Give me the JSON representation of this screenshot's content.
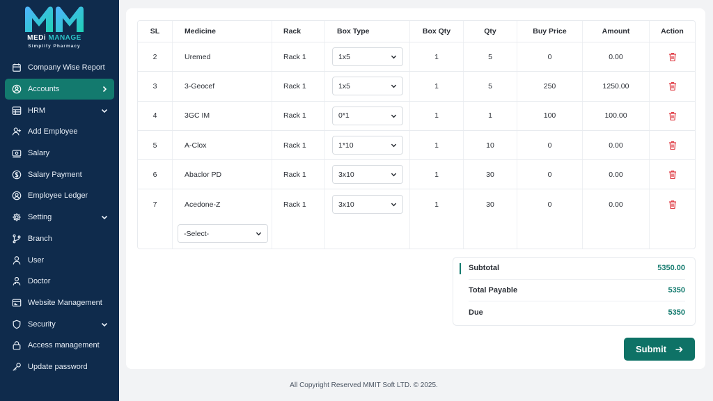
{
  "brand": {
    "name_part1": "MEDi ",
    "name_part2": "MANAGE",
    "tagline": "Simplify Pharmacy"
  },
  "sidebar": {
    "items": [
      {
        "label": "Company Wise Report",
        "icon": "report-icon"
      },
      {
        "label": "Accounts",
        "icon": "user-circle-icon",
        "active": true
      },
      {
        "label": "HRM",
        "icon": "grid-icon",
        "expandable": true
      },
      {
        "label": "Add Employee",
        "icon": "user-plus-icon"
      },
      {
        "label": "Salary",
        "icon": "money-icon"
      },
      {
        "label": "Salary Payment",
        "icon": "dollar-circle-icon"
      },
      {
        "label": "Employee Ledger",
        "icon": "user-circle-icon"
      },
      {
        "label": "Setting",
        "icon": "gear-icon",
        "expandable": true
      },
      {
        "label": "Branch",
        "icon": "branch-icon"
      },
      {
        "label": "User",
        "icon": "user-icon"
      },
      {
        "label": "Doctor",
        "icon": "doctor-icon"
      },
      {
        "label": "Website Management",
        "icon": "website-icon"
      },
      {
        "label": "Security",
        "icon": "shield-icon",
        "expandable": true
      },
      {
        "label": "Access management",
        "icon": "lock-icon"
      },
      {
        "label": "Update password",
        "icon": "key-icon"
      }
    ]
  },
  "table": {
    "headers": {
      "sl": "SL",
      "medicine": "Medicine",
      "rack": "Rack",
      "box_type": "Box Type",
      "box_qty": "Box Qty",
      "qty": "Qty",
      "buy_price": "Buy Price",
      "amount": "Amount",
      "action": "Action"
    },
    "rows": [
      {
        "sl": "2",
        "medicine": "Uremed",
        "rack": "Rack 1",
        "box_type": "1x5",
        "box_qty": "1",
        "qty": "5",
        "buy_price": "0",
        "amount": "0.00"
      },
      {
        "sl": "3",
        "medicine": "3-Geocef",
        "rack": "Rack 1",
        "box_type": "1x5",
        "box_qty": "1",
        "qty": "5",
        "buy_price": "250",
        "amount": "1250.00"
      },
      {
        "sl": "4",
        "medicine": "3GC IM",
        "rack": "Rack 1",
        "box_type": "0*1",
        "box_qty": "1",
        "qty": "1",
        "buy_price": "100",
        "amount": "100.00"
      },
      {
        "sl": "5",
        "medicine": "A-Clox",
        "rack": "Rack 1",
        "box_type": "1*10",
        "box_qty": "1",
        "qty": "10",
        "buy_price": "0",
        "amount": "0.00"
      },
      {
        "sl": "6",
        "medicine": "Abaclor PD",
        "rack": "Rack 1",
        "box_type": "3x10",
        "box_qty": "1",
        "qty": "30",
        "buy_price": "0",
        "amount": "0.00"
      },
      {
        "sl": "7",
        "medicine": "Acedone-Z",
        "rack": "Rack 1",
        "box_type": "3x10",
        "box_qty": "1",
        "qty": "30",
        "buy_price": "0",
        "amount": "0.00"
      }
    ],
    "new_row_select": "-Select-"
  },
  "totals": {
    "subtotal_label": "Subtotal",
    "subtotal_value": "5350.00",
    "payable_label": "Total Payable",
    "payable_value": "5350",
    "due_label": "Due",
    "due_value": "5350"
  },
  "submit_label": "Submit",
  "footer": "All Copyright Reserved MMIT Soft LTD. © 2025.",
  "colors": {
    "sidebar_bg": "#0f2b4c",
    "accent": "#137a6e",
    "danger": "#e0424a"
  }
}
